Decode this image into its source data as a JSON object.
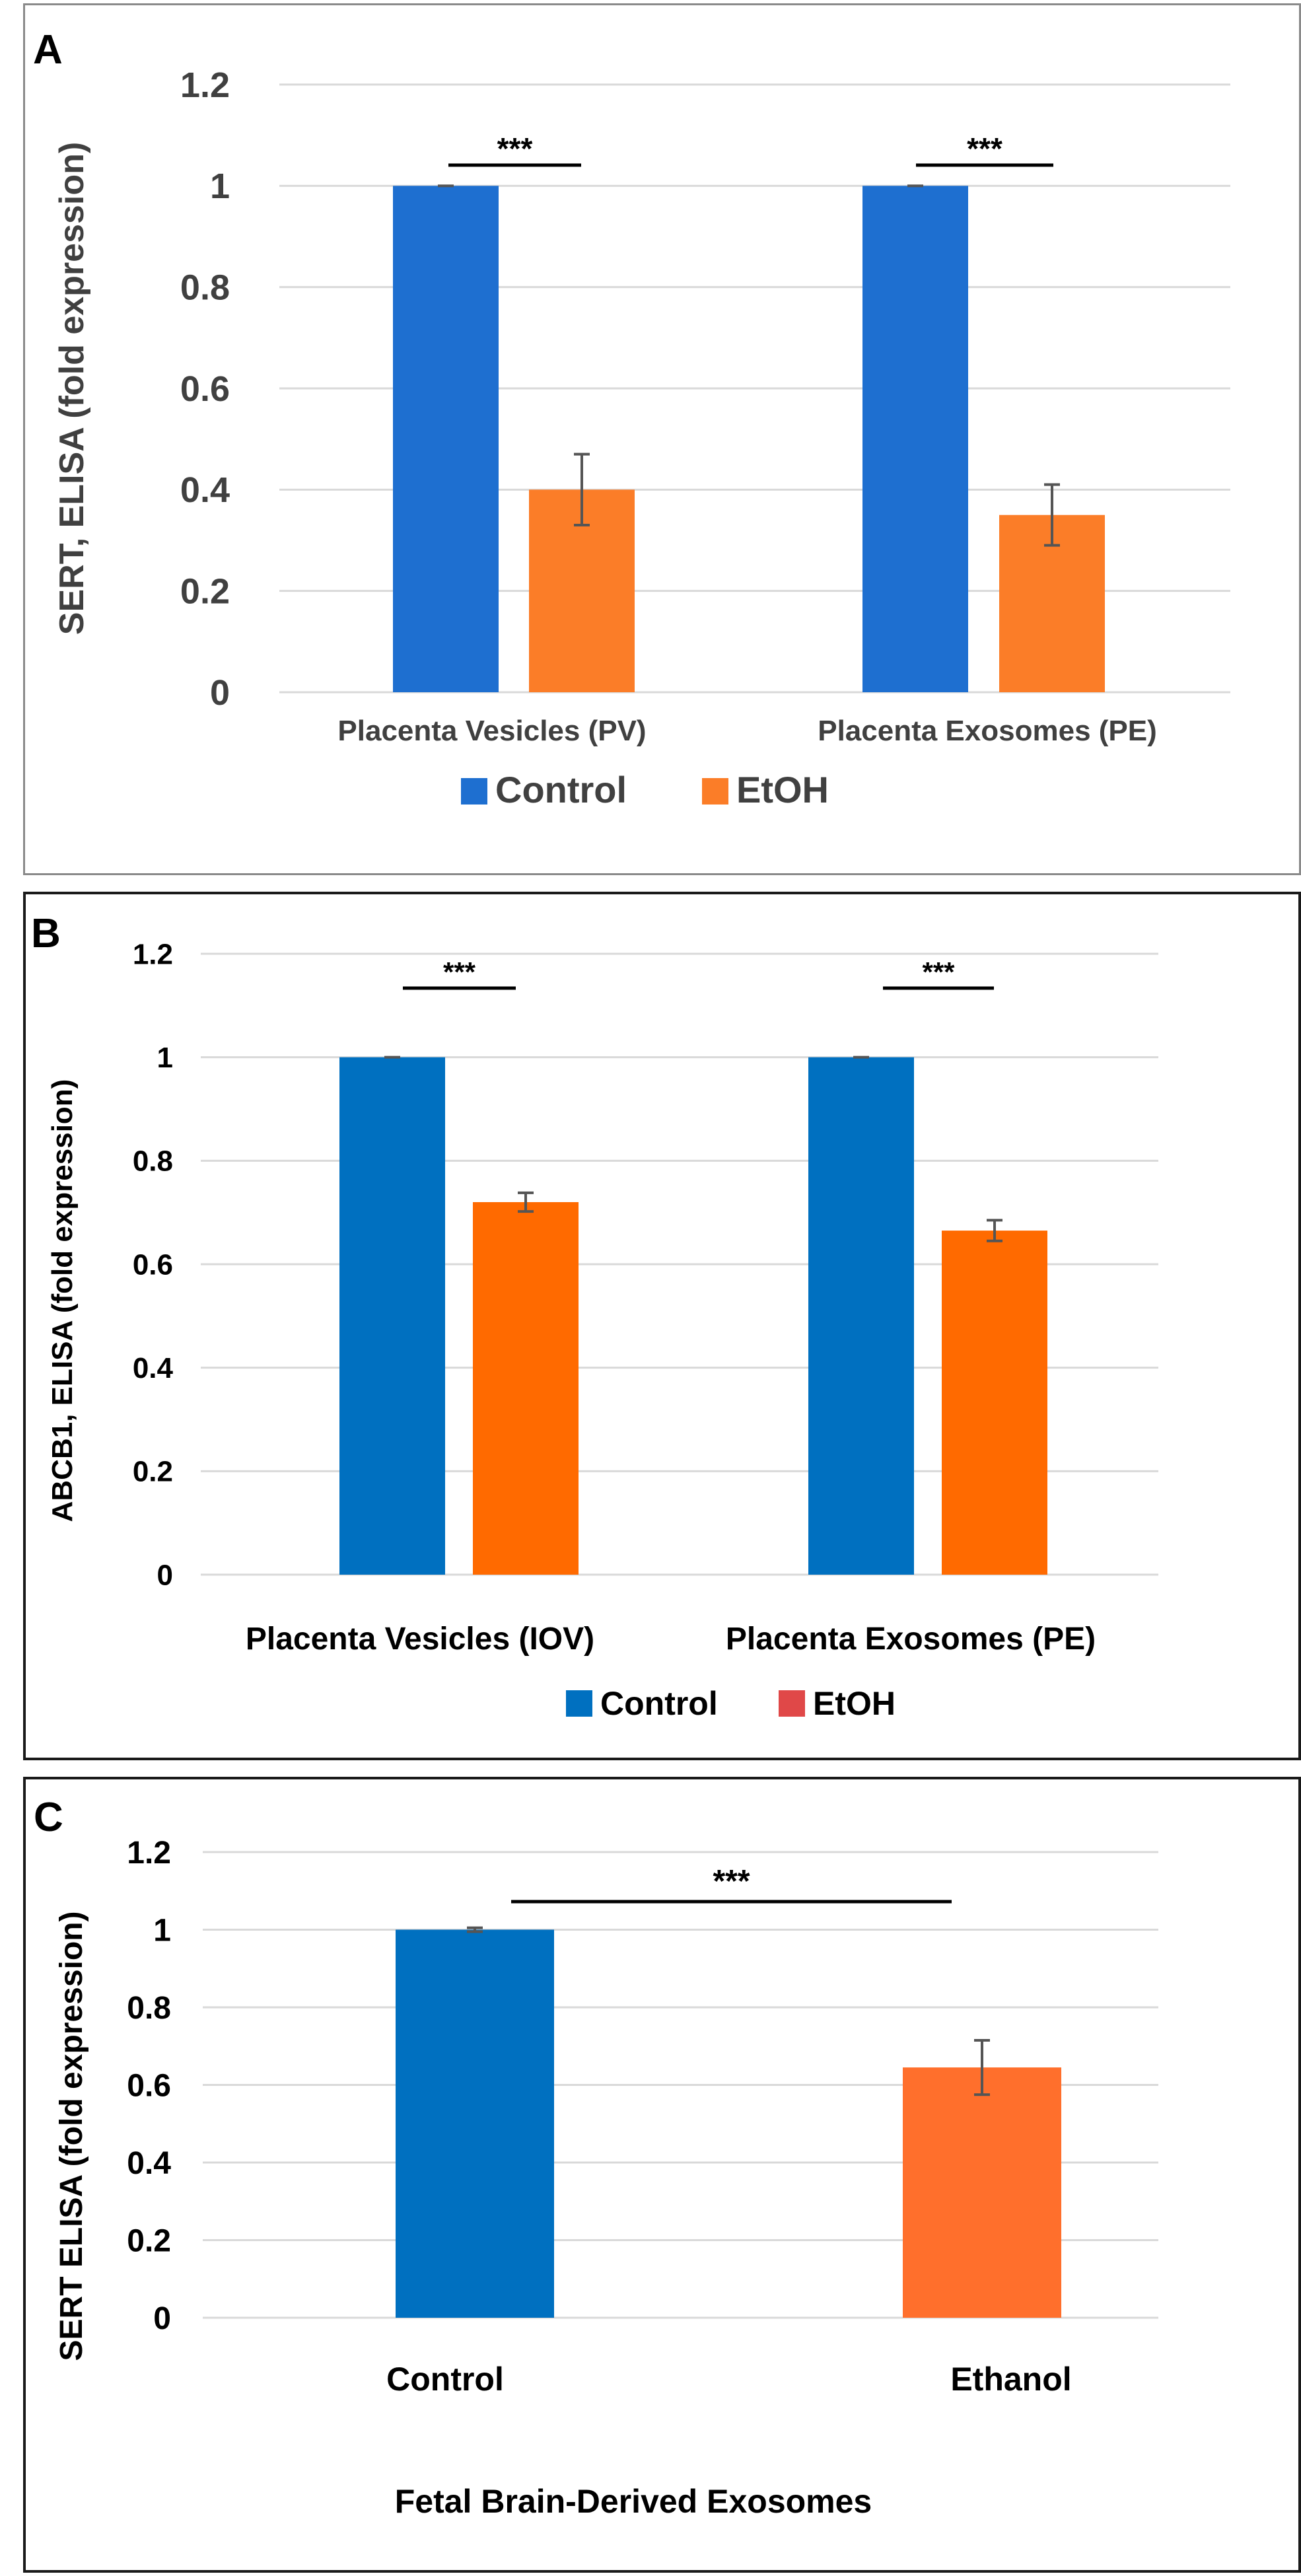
{
  "chart_data": [
    {
      "panel_letter": "A",
      "type": "bar",
      "categories": [
        "Placenta Vesicles (PV)",
        "Placenta Exosomes (PE)"
      ],
      "series": [
        {
          "name": "Control",
          "values": [
            1.0,
            1.0
          ],
          "errors": [
            0.0,
            0.0
          ],
          "color": "#1e6fd0"
        },
        {
          "name": "EtOH",
          "values": [
            0.4,
            0.35
          ],
          "errors": [
            0.07,
            0.06
          ],
          "color": "#fb7d28"
        }
      ],
      "ylabel": "SERT, ELISA (fold expression)",
      "xlabel": "",
      "ylim": [
        0,
        1.2
      ],
      "yticks": [
        "0",
        "0.2",
        "0.4",
        "0.6",
        "0.8",
        "1",
        "1.2"
      ],
      "significance": [
        "***",
        "***"
      ],
      "legend": [
        "Control",
        "EtOH"
      ],
      "legend_position": "bottom",
      "grid": true
    },
    {
      "panel_letter": "B",
      "type": "bar",
      "categories": [
        "Placenta Vesicles (IOV)",
        "Placenta Exosomes (PE)"
      ],
      "series": [
        {
          "name": "Control",
          "values": [
            1.0,
            1.0
          ],
          "errors": [
            0.0,
            0.0
          ],
          "color": "#0070c0",
          "legend_color": "#0070c0"
        },
        {
          "name": "EtOH",
          "values": [
            0.72,
            0.665
          ],
          "errors": [
            0.018,
            0.02
          ],
          "color": "#ff6a00",
          "legend_color": "#e04848"
        }
      ],
      "ylabel": "ABCB1, ELISA (fold expression)",
      "xlabel": "",
      "ylim": [
        0,
        1.2
      ],
      "yticks": [
        "0",
        "0.2",
        "0.4",
        "0.6",
        "0.8",
        "1",
        "1.2"
      ],
      "significance": [
        "***",
        "***"
      ],
      "legend": [
        "Control",
        "EtOH"
      ],
      "legend_position": "bottom",
      "grid": true
    },
    {
      "panel_letter": "C",
      "type": "bar",
      "categories": [
        "Control",
        "Ethanol"
      ],
      "series": [
        {
          "name": "SERT",
          "values": [
            1.0,
            0.645
          ],
          "errors": [
            0.005,
            0.07
          ],
          "colors": [
            "#0070c0",
            "#ff6f2c"
          ]
        }
      ],
      "ylabel": "SERT  ELISA (fold expression)",
      "xlabel": "Fetal Brain-Derived Exosomes",
      "ylim": [
        0,
        1.2
      ],
      "yticks": [
        "0",
        "0.2",
        "0.4",
        "0.6",
        "0.8",
        "1",
        "1.2"
      ],
      "significance": [
        "***"
      ],
      "grid": true
    }
  ]
}
